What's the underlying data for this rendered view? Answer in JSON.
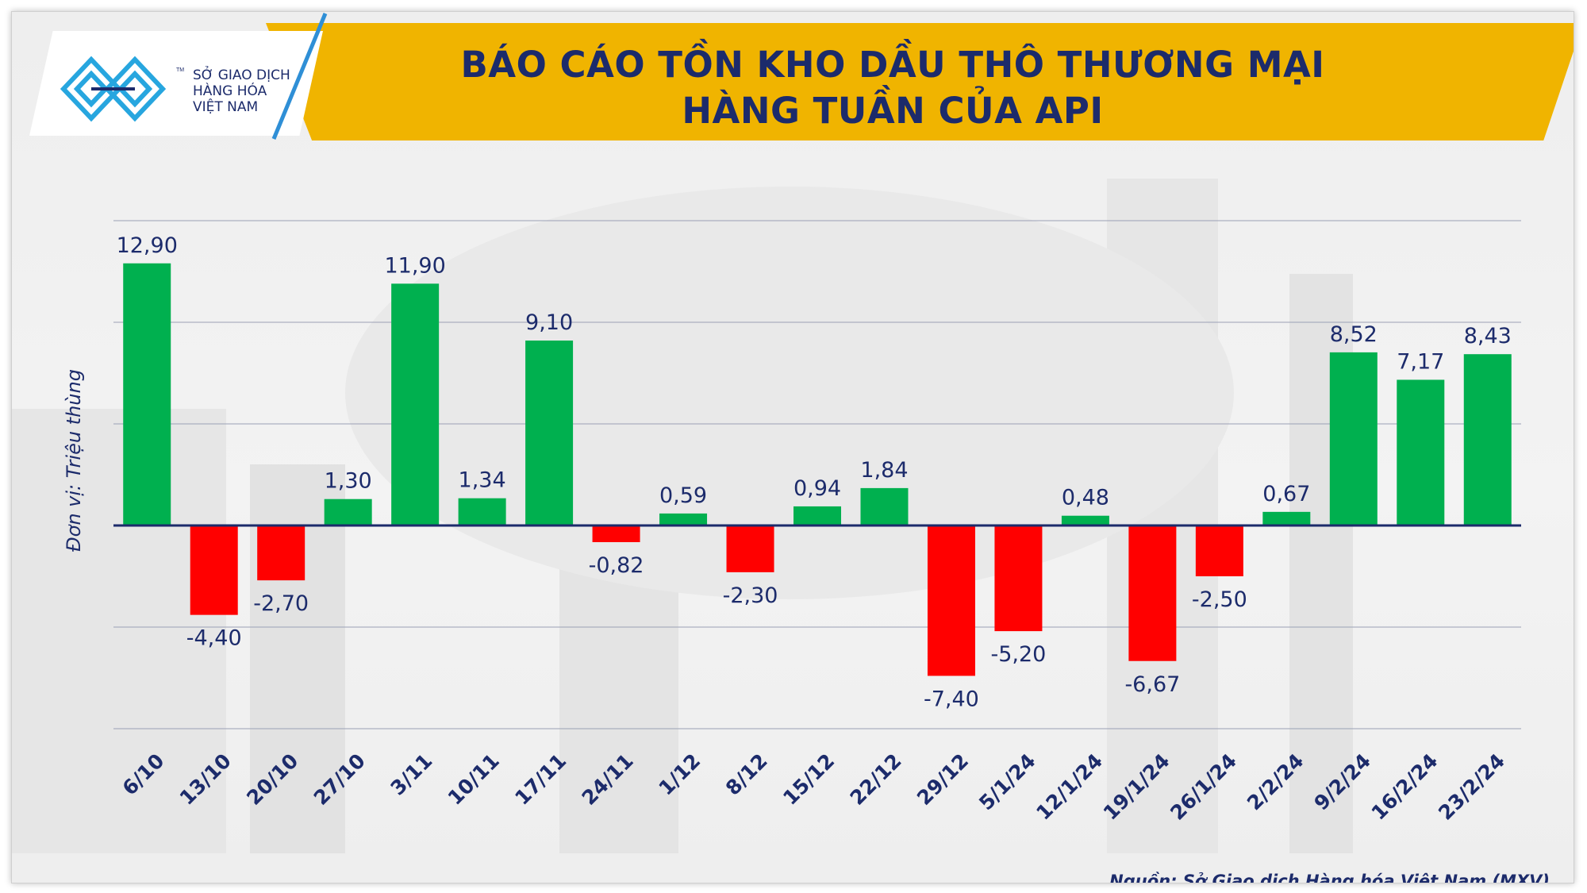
{
  "header": {
    "title_line_1": "BÁO CÁO TỒN KHO DẦU THÔ THƯƠNG MẠI",
    "title_line_2": "HÀNG TUẦN CỦA API"
  },
  "logo": {
    "line_1": "SỞ GIAO DỊCH",
    "line_2": "HÀNG HÓA",
    "line_3": "VIỆT NAM",
    "tm": "TM"
  },
  "footer": {
    "source": "Nguồn: Sở Giao dịch Hàng hóa Việt Nam (MXV)"
  },
  "colors": {
    "positive": "#00b04f",
    "negative": "#ff0000",
    "title_banner": "#f0b400",
    "text": "#1c2b6b"
  },
  "chart_data": {
    "type": "bar",
    "ylabel": "Đơn vị: Triệu thùng",
    "ylim": [
      -10,
      15
    ],
    "y_gridlines": [
      -10,
      -5,
      0,
      5,
      10,
      15
    ],
    "y_tick_labels_shown": false,
    "grid": true,
    "legend": "none",
    "categories": [
      "6/10",
      "13/10",
      "20/10",
      "27/10",
      "3/11",
      "10/11",
      "17/11",
      "24/11",
      "1/12",
      "8/12",
      "15/12",
      "22/12",
      "29/12",
      "5/1/24",
      "12/1/24",
      "19/1/24",
      "26/1/24",
      "2/2/24",
      "9/2/24",
      "16/2/24",
      "23/2/24"
    ],
    "values": [
      12.9,
      -4.4,
      -2.7,
      1.3,
      11.9,
      1.34,
      9.1,
      -0.82,
      0.59,
      -2.3,
      0.94,
      1.84,
      -7.4,
      -5.2,
      0.48,
      -6.67,
      -2.5,
      0.67,
      8.52,
      7.17,
      8.43
    ],
    "labels": [
      "12,90",
      "-4,40",
      "-2,70",
      "1,30",
      "11,90",
      "1,34",
      "9,10",
      "-0,82",
      "0,59",
      "-2,30",
      "0,94",
      "1,84",
      "-7,40",
      "-5,20",
      "0,48",
      "-6,67",
      "-2,50",
      "0,67",
      "8,52",
      "7,17",
      "8,43"
    ]
  }
}
